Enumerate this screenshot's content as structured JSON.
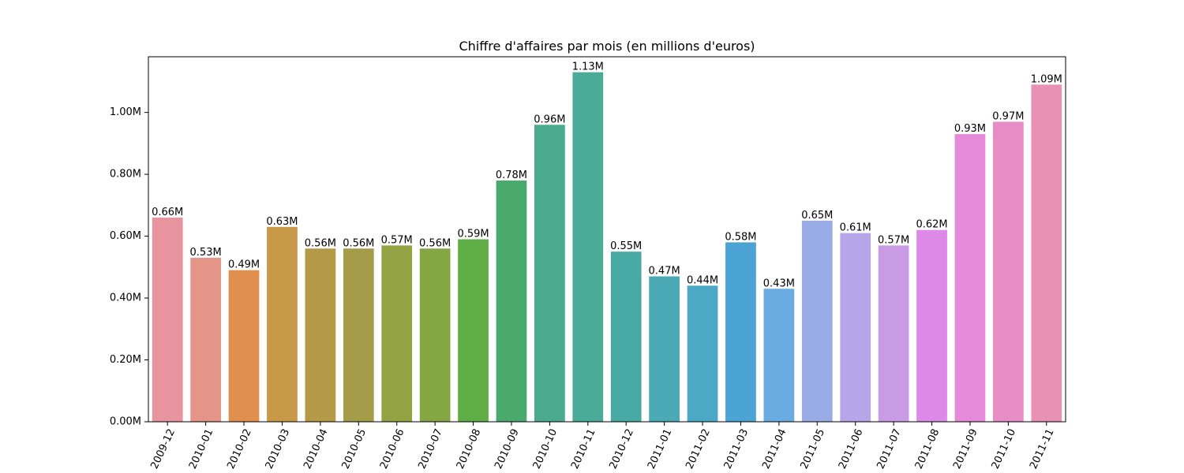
{
  "chart_data": {
    "type": "bar",
    "title": "Chiffre d'affaires par mois (en millions d'euros)",
    "xlabel": "",
    "ylabel": "",
    "categories": [
      "2009-12",
      "2010-01",
      "2010-02",
      "2010-03",
      "2010-04",
      "2010-05",
      "2010-06",
      "2010-07",
      "2010-08",
      "2010-09",
      "2010-10",
      "2010-11",
      "2010-12",
      "2011-01",
      "2011-02",
      "2011-03",
      "2011-04",
      "2011-05",
      "2011-06",
      "2011-07",
      "2011-08",
      "2011-09",
      "2011-10",
      "2011-11"
    ],
    "values": [
      0.66,
      0.53,
      0.49,
      0.63,
      0.56,
      0.56,
      0.57,
      0.56,
      0.59,
      0.78,
      0.96,
      1.13,
      0.55,
      0.47,
      0.44,
      0.58,
      0.43,
      0.65,
      0.61,
      0.57,
      0.62,
      0.93,
      0.97,
      1.09
    ],
    "data_labels": [
      "0.66M",
      "0.53M",
      "0.49M",
      "0.63M",
      "0.56M",
      "0.56M",
      "0.57M",
      "0.56M",
      "0.59M",
      "0.78M",
      "0.96M",
      "1.13M",
      "0.55M",
      "0.47M",
      "0.44M",
      "0.58M",
      "0.43M",
      "0.65M",
      "0.61M",
      "0.57M",
      "0.62M",
      "0.93M",
      "0.97M",
      "1.09M"
    ],
    "colors": [
      "#e8949f",
      "#e59588",
      "#e08f4f",
      "#c89948",
      "#b49a46",
      "#a49c48",
      "#93a344",
      "#84a744",
      "#5fad45",
      "#4aaa6d",
      "#4aaa8d",
      "#4aab99",
      "#49aaa5",
      "#4aa9b4",
      "#4ba9c6",
      "#4aa3d2",
      "#6aace1",
      "#9aace6",
      "#b6a5e9",
      "#c99be5",
      "#dd89e7",
      "#e48ad8",
      "#e78cc4",
      "#e891b5"
    ],
    "ylim": [
      0,
      1.18
    ],
    "yticks": [
      0.0,
      0.2,
      0.4,
      0.6,
      0.8,
      1.0
    ],
    "ytick_labels": [
      "0.00M",
      "0.20M",
      "0.40M",
      "0.60M",
      "0.80M",
      "1.00M"
    ],
    "grid": false,
    "legend": "none",
    "xtick_rotation_deg": -65
  }
}
